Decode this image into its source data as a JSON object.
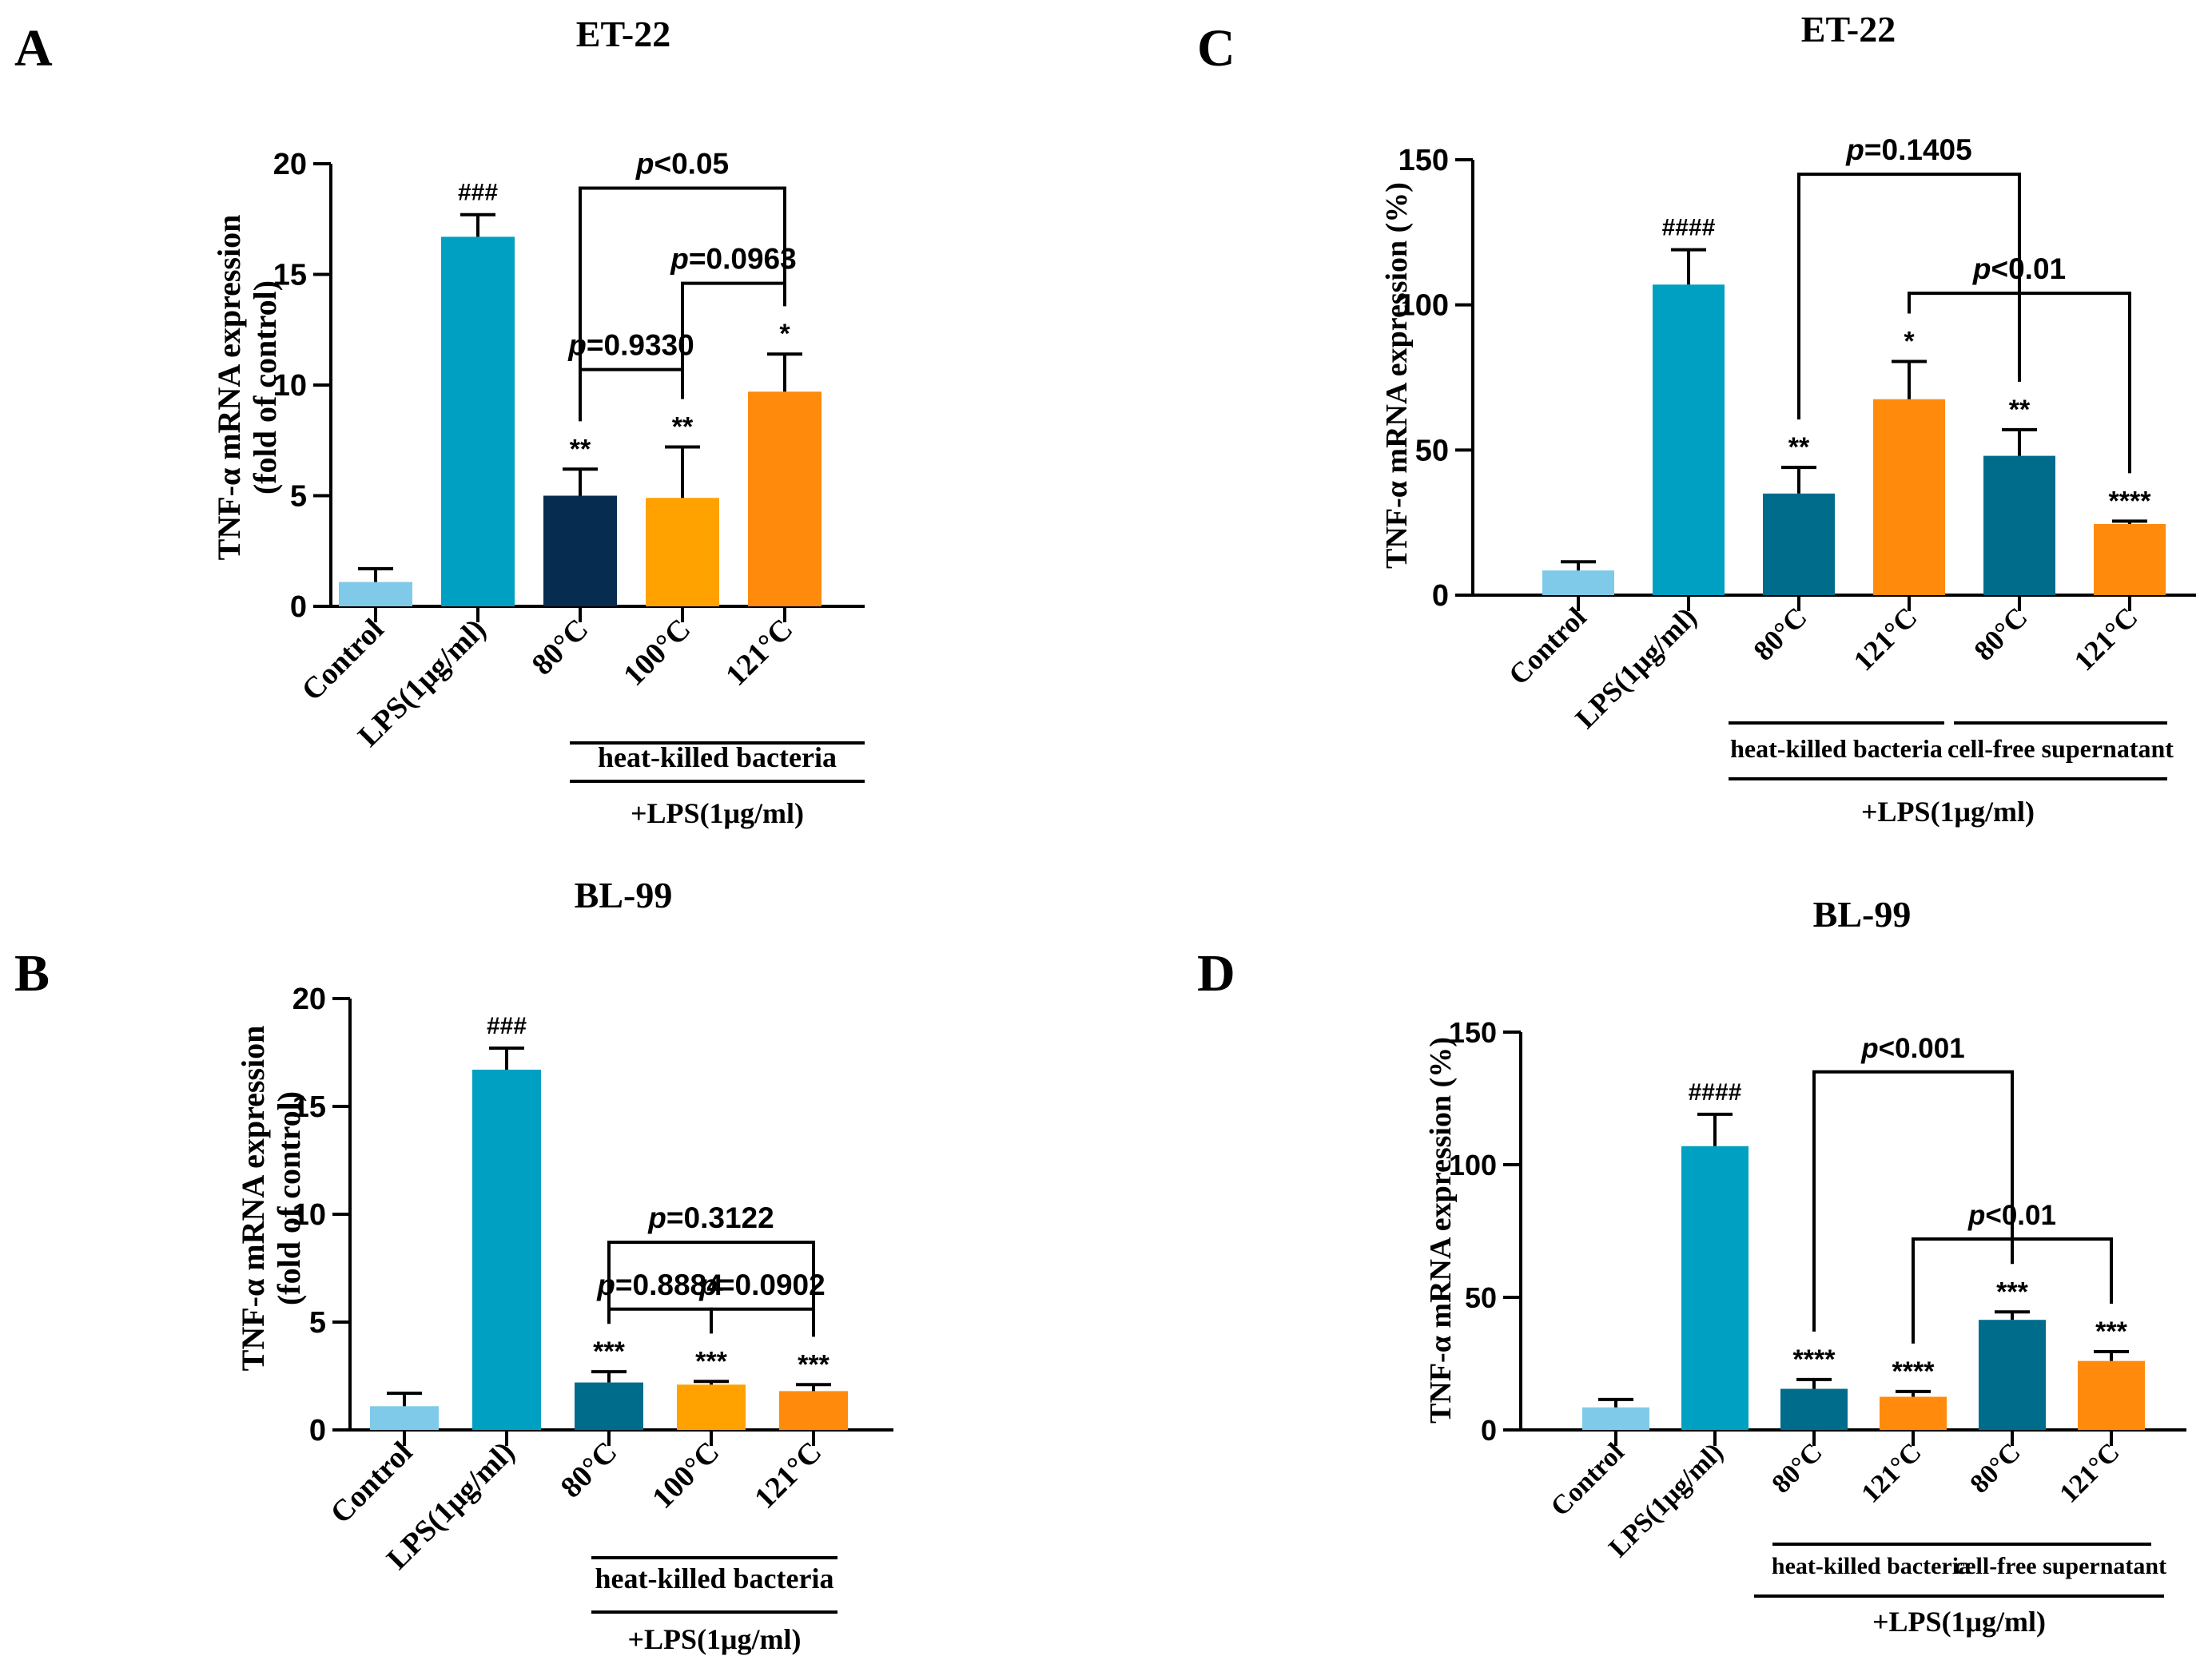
{
  "colors": {
    "control": "#7fc9e9",
    "lps": "#00a0c2",
    "navy": "#062c4f",
    "teal": "#006c8c",
    "yellow_orange": "#ffa200",
    "orange": "#ff8a0c",
    "axis": "#000000"
  },
  "chart_data": [
    {
      "panel": "A",
      "title": "ET-22",
      "type": "bar",
      "ylabel_line1": "TNF-α mRNA expression",
      "ylabel_line2": "(fold of control)",
      "ylim": [
        0,
        20
      ],
      "yticks": [
        0,
        5,
        10,
        15,
        20
      ],
      "categories": [
        "Control",
        "LPS(1μg/ml)",
        "80°C",
        "100°C",
        "121°C"
      ],
      "values": [
        1.1,
        16.7,
        5.0,
        4.9,
        9.7
      ],
      "errors": [
        0.6,
        1.0,
        1.2,
        2.3,
        1.7
      ],
      "bar_colors": [
        "control",
        "lps",
        "navy",
        "yellow_orange",
        "orange"
      ],
      "annotations": [
        "",
        "###",
        "**",
        "**",
        "*"
      ],
      "groups": [
        {
          "label": "heat-killed bacteria",
          "from": 2,
          "to": 4
        }
      ],
      "lps_label": "+LPS(1μg/ml)",
      "brackets": [
        {
          "from": 2,
          "to": 4,
          "level": 18.9,
          "label_italic": "p",
          "label_rest": "<0.05"
        },
        {
          "from": 3,
          "to": 4,
          "level": 14.6,
          "label_italic": "p",
          "label_rest": "=0.0963"
        },
        {
          "from": 2,
          "to": 3,
          "level": 10.7,
          "label_italic": "p",
          "label_rest": "=0.9330"
        }
      ]
    },
    {
      "panel": "B",
      "title": "BL-99",
      "type": "bar",
      "ylabel_line1": "TNF-α mRNA expression",
      "ylabel_line2": "(fold of control)",
      "ylim": [
        0,
        20
      ],
      "yticks": [
        0,
        5,
        10,
        15,
        20
      ],
      "categories": [
        "Control",
        "LPS(1μg/ml)",
        "80°C",
        "100°C",
        "121°C"
      ],
      "values": [
        1.1,
        16.7,
        2.2,
        2.1,
        1.8
      ],
      "errors": [
        0.6,
        1.0,
        0.5,
        0.15,
        0.3
      ],
      "bar_colors": [
        "control",
        "lps",
        "teal",
        "yellow_orange",
        "orange"
      ],
      "annotations": [
        "",
        "###",
        "***",
        "***",
        "***"
      ],
      "groups": [
        {
          "label": "heat-killed bacteria",
          "from": 2,
          "to": 4
        }
      ],
      "lps_label": "+LPS(1μg/ml)",
      "brackets": [
        {
          "from": 2,
          "to": 4,
          "level": 8.7,
          "label_italic": "p",
          "label_rest": "=0.3122"
        },
        {
          "from": 2,
          "to": 3,
          "level": 5.6,
          "label_italic": "p",
          "label_rest": "=0.8884"
        },
        {
          "from": 3,
          "to": 4,
          "level": 5.6,
          "label_italic": "p",
          "label_rest": "=0.0902"
        }
      ]
    },
    {
      "panel": "C",
      "title": "ET-22",
      "type": "bar",
      "ylabel_line1": "TNF-α mRNA expression (%)",
      "ylabel_line2": "",
      "ylim": [
        0,
        150
      ],
      "yticks": [
        0,
        50,
        100,
        150
      ],
      "categories": [
        "Control",
        "LPS(1μg/ml)",
        "80°C",
        "121°C",
        "80°C",
        "121°C"
      ],
      "values": [
        8.5,
        107,
        35,
        67.5,
        48,
        24.5
      ],
      "errors": [
        3,
        12,
        9,
        13,
        9,
        1
      ],
      "bar_colors": [
        "control",
        "lps",
        "teal",
        "orange",
        "teal",
        "orange"
      ],
      "annotations": [
        "",
        "####",
        "**",
        "*",
        "**",
        "****"
      ],
      "groups": [
        {
          "label": "heat-killed bacteria",
          "from": 2,
          "to": 3
        },
        {
          "label": "cell-free supernatant",
          "from": 4,
          "to": 5
        }
      ],
      "lps_label": "+LPS(1μg/ml)",
      "brackets": [
        {
          "from": 2,
          "to": 4,
          "level": 145,
          "label_italic": "p",
          "label_rest": "=0.1405"
        },
        {
          "from": 3,
          "to": 5,
          "level": 104,
          "label_italic": "p",
          "label_rest": "<0.01"
        }
      ]
    },
    {
      "panel": "D",
      "title": "BL-99",
      "type": "bar",
      "ylabel_line1": "TNF-α mRNA expression (%)",
      "ylabel_line2": "",
      "ylim": [
        0,
        150
      ],
      "yticks": [
        0,
        50,
        100,
        150
      ],
      "categories": [
        "Control",
        "LPS(1μg/ml)",
        "80°C",
        "121°C",
        "80°C",
        "121°C"
      ],
      "values": [
        8.5,
        107,
        15.5,
        12.5,
        41.5,
        26
      ],
      "errors": [
        3,
        12,
        3.5,
        2,
        3,
        3.5
      ],
      "bar_colors": [
        "control",
        "lps",
        "teal",
        "orange",
        "teal",
        "orange"
      ],
      "annotations": [
        "",
        "####",
        "****",
        "****",
        "***",
        "***"
      ],
      "groups": [
        {
          "label": "heat-killed bacteria",
          "from": 2,
          "to": 3
        },
        {
          "label": "cell-free supernatant",
          "from": 4,
          "to": 5
        }
      ],
      "lps_label": "+LPS(1μg/ml)",
      "brackets": [
        {
          "from": 2,
          "to": 4,
          "level": 135,
          "label_italic": "p",
          "label_rest": "<0.001"
        },
        {
          "from": 3,
          "to": 5,
          "level": 72,
          "label_italic": "p",
          "label_rest": "<0.01"
        }
      ]
    }
  ]
}
